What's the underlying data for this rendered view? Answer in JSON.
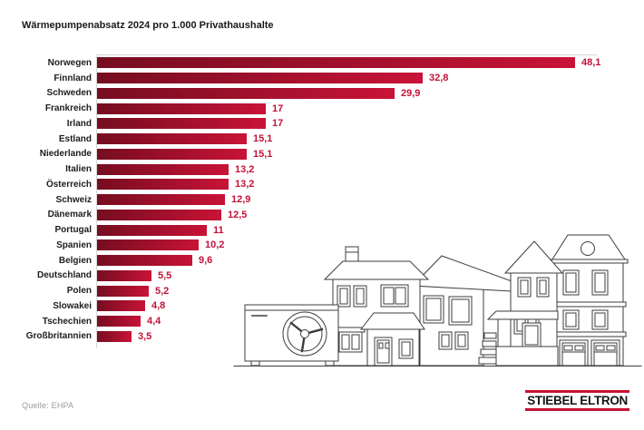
{
  "title": "Wärmepumpenabsatz 2024 pro 1.000 Privathaushalte",
  "source": "Quelle: EHPA",
  "logo": {
    "text": "STIEBEL ELTRON"
  },
  "colors": {
    "bar_gradient_start": "#760d20",
    "bar_gradient_end": "#c81337",
    "value_label": "#c21237",
    "logo_red": "#c51230",
    "axis_line": "#d6d6d6",
    "line_art": "#3d3d3d"
  },
  "chart_data": {
    "type": "bar",
    "orientation": "horizontal",
    "title": "Wärmepumpenabsatz 2024 pro 1.000 Privathaushalte",
    "xlabel": "",
    "ylabel": "",
    "xlim": [
      0,
      48.1
    ],
    "grid": false,
    "legend": false,
    "categories": [
      "Norwegen",
      "Finnland",
      "Schweden",
      "Frankreich",
      "Irland",
      "Estland",
      "Niederlande",
      "Italien",
      "Österreich",
      "Schweiz",
      "Dänemark",
      "Portugal",
      "Spanien",
      "Belgien",
      "Deutschland",
      "Polen",
      "Slowakei",
      "Tschechien",
      "Großbritannien"
    ],
    "values": [
      48.1,
      32.8,
      29.9,
      17,
      17,
      15.1,
      15.1,
      13.2,
      13.2,
      12.9,
      12.5,
      11,
      10.2,
      9.6,
      5.5,
      5.2,
      4.8,
      4.4,
      3.5
    ],
    "value_labels": [
      "48,1",
      "32,8",
      "29,9",
      "17",
      "17",
      "15,1",
      "15,1",
      "13,2",
      "13,2",
      "12,9",
      "12,5",
      "11",
      "10,2",
      "9,6",
      "5,5",
      "5,2",
      "4,8",
      "4,4",
      "3,5"
    ]
  },
  "illustration": {
    "description": "line-art of a heat pump outdoor unit in front of a row of houses"
  }
}
